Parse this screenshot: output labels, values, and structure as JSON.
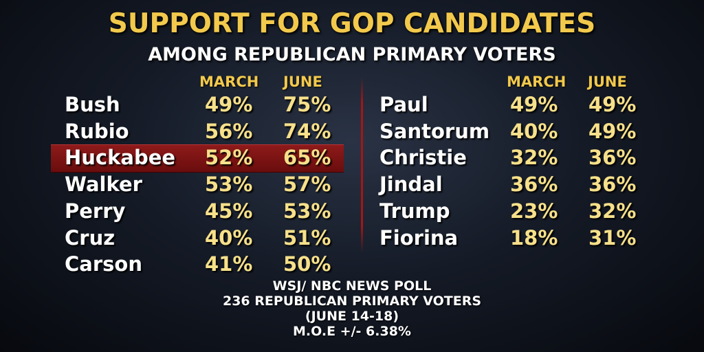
{
  "title": "SUPPORT FOR GOP CANDIDATES",
  "subtitle": "AMONG REPUBLICAN PRIMARY VOTERS",
  "highlight_color": "#8e1a1a",
  "columns": {
    "march": "MARCH",
    "june": "JUNE"
  },
  "chart_data": {
    "type": "table",
    "title": "SUPPORT FOR GOP CANDIDATES",
    "subtitle": "AMONG REPUBLICAN PRIMARY VOTERS",
    "columns": [
      "MARCH",
      "JUNE"
    ],
    "highlighted": "Huckabee",
    "left": [
      {
        "name": "Bush",
        "march": "49%",
        "june": "75%"
      },
      {
        "name": "Rubio",
        "march": "56%",
        "june": "74%"
      },
      {
        "name": "Huckabee",
        "march": "52%",
        "june": "65%"
      },
      {
        "name": "Walker",
        "march": "53%",
        "june": "57%"
      },
      {
        "name": "Perry",
        "march": "45%",
        "june": "53%"
      },
      {
        "name": "Cruz",
        "march": "40%",
        "june": "51%"
      },
      {
        "name": "Carson",
        "march": "41%",
        "june": "50%"
      }
    ],
    "right": [
      {
        "name": "Paul",
        "march": "49%",
        "june": "49%"
      },
      {
        "name": "Santorum",
        "march": "40%",
        "june": "49%"
      },
      {
        "name": "Christie",
        "march": "32%",
        "june": "36%"
      },
      {
        "name": "Jindal",
        "march": "36%",
        "june": "36%"
      },
      {
        "name": "Trump",
        "march": "23%",
        "june": "32%"
      },
      {
        "name": "Fiorina",
        "march": "18%",
        "june": "31%"
      }
    ]
  },
  "source": {
    "line1": "WSJ/ NBC NEWS POLL",
    "line2": "236 REPUBLICAN PRIMARY VOTERS",
    "line3": "(JUNE 14-18)",
    "line4": "M.O.E  +/- 6.38%"
  }
}
